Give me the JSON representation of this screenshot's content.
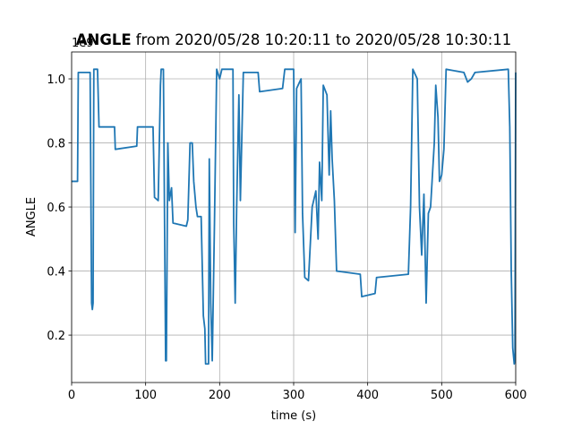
{
  "chart_data": {
    "type": "line",
    "title": {
      "bold": "ANGLE",
      "rest": "from 2020/05/28 10:20:11 to 2020/05/28 10:30:11"
    },
    "x_label": "time (s)",
    "y_label": "ANGLE",
    "y_offset_label": "1e9",
    "color": "#1f77b4",
    "grid": true,
    "xlim": [
      0,
      600
    ],
    "xticks": [
      0,
      100,
      200,
      300,
      400,
      500,
      600
    ],
    "ylim": [
      0.052,
      1.084
    ],
    "yticks": [
      0.2,
      0.4,
      0.6,
      0.8,
      {
        "value": 1,
        "label": "1.0"
      }
    ],
    "x": [
      0,
      8,
      9,
      25,
      27,
      28,
      29,
      30,
      35,
      37,
      58,
      59,
      88,
      89,
      110,
      112,
      117,
      120,
      121,
      124,
      127,
      128,
      130,
      132,
      135,
      137,
      155,
      157,
      160,
      163,
      165,
      168,
      170,
      175,
      178,
      180,
      181,
      185,
      186,
      188,
      190,
      193,
      196,
      200,
      203,
      218,
      219,
      221,
      223,
      226,
      228,
      232,
      252,
      254,
      285,
      288,
      300,
      302,
      304,
      310,
      312,
      315,
      320,
      325,
      330,
      333,
      335,
      338,
      340,
      345,
      348,
      350,
      352,
      355,
      358,
      390,
      392,
      410,
      412,
      455,
      458,
      461,
      467,
      470,
      473,
      476,
      479,
      482,
      485,
      487,
      490,
      492,
      495,
      497,
      500,
      503,
      506,
      530,
      535,
      540,
      545,
      590,
      592,
      594,
      596,
      598,
      599,
      600
    ],
    "values": [
      0.68,
      0.68,
      1.02,
      1.02,
      0.3,
      0.28,
      0.3,
      1.03,
      1.03,
      0.85,
      0.85,
      0.78,
      0.79,
      0.85,
      0.85,
      0.63,
      0.62,
      0.98,
      1.03,
      1.03,
      0.12,
      0.12,
      0.8,
      0.62,
      0.66,
      0.55,
      0.54,
      0.56,
      0.8,
      0.8,
      0.68,
      0.6,
      0.57,
      0.57,
      0.26,
      0.22,
      0.11,
      0.11,
      0.75,
      0.3,
      0.12,
      0.55,
      1.03,
      1.0,
      1.03,
      1.03,
      0.55,
      0.3,
      0.6,
      0.95,
      0.62,
      1.02,
      1.02,
      0.96,
      0.97,
      1.03,
      1.03,
      0.52,
      0.97,
      1.0,
      0.58,
      0.38,
      0.37,
      0.6,
      0.65,
      0.5,
      0.74,
      0.62,
      0.98,
      0.95,
      0.7,
      0.9,
      0.75,
      0.62,
      0.4,
      0.39,
      0.32,
      0.33,
      0.38,
      0.39,
      0.6,
      1.03,
      1.0,
      0.6,
      0.45,
      0.64,
      0.3,
      0.58,
      0.6,
      0.68,
      0.8,
      0.98,
      0.88,
      0.68,
      0.7,
      0.78,
      1.03,
      1.02,
      0.99,
      1.0,
      1.02,
      1.03,
      0.85,
      0.4,
      0.16,
      0.11,
      0.12,
      1.02
    ]
  }
}
